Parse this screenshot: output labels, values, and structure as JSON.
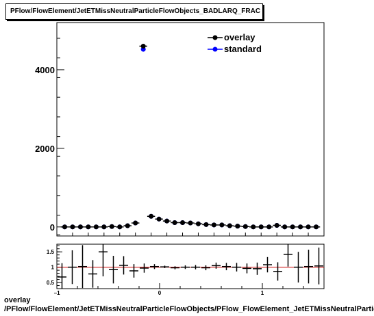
{
  "header": {
    "title": "PFlow/FlowElement/JetETMissNeutralParticleFlowObjects_BADLARQ_FRAC"
  },
  "footer": {
    "line1": "overlay",
    "line2": "/PFlow/FlowElement/JetETMissNeutralParticleFlowObjects/PFlow_FlowElement_JetETMissNeutralParticleFlowObjects_BADLARQ_FRAC"
  },
  "colors": {
    "overlay": "#000000",
    "standard": "#0000ff",
    "ratio_line": "#cc0000"
  },
  "chart_data": [
    {
      "type": "scatter",
      "title": "PFlow/FlowElement/JetETMissNeutralParticleFlowObjects_BADLARQ_FRAC",
      "xlim": [
        -0.1,
        1.6
      ],
      "ylim": [
        -230,
        5200
      ],
      "yticks": [
        0,
        2000,
        4000
      ],
      "ytick_labels": [
        "0",
        "2000",
        "4000"
      ],
      "grid": false,
      "legend_position": "top-right",
      "x": [
        -0.05,
        0.0,
        0.05,
        0.1,
        0.15,
        0.2,
        0.25,
        0.3,
        0.35,
        0.4,
        0.45,
        0.5,
        0.55,
        0.6,
        0.65,
        0.7,
        0.75,
        0.8,
        0.85,
        0.9,
        0.95,
        1.0,
        1.05,
        1.1,
        1.15,
        1.2,
        1.25,
        1.3,
        1.35,
        1.4,
        1.45,
        1.5,
        1.55
      ],
      "series": [
        {
          "name": "overlay",
          "values": [
            0,
            0,
            0,
            0,
            0,
            0,
            10,
            0,
            30,
            100,
            4600,
            270,
            200,
            150,
            110,
            110,
            100,
            80,
            60,
            50,
            50,
            30,
            20,
            10,
            0,
            0,
            0,
            40,
            0,
            0,
            0,
            0,
            0
          ]
        },
        {
          "name": "standard",
          "values": [
            0,
            0,
            0,
            0,
            0,
            0,
            10,
            0,
            30,
            100,
            4520,
            270,
            200,
            150,
            110,
            110,
            100,
            80,
            60,
            50,
            50,
            30,
            20,
            10,
            0,
            0,
            0,
            40,
            0,
            0,
            0,
            0,
            0
          ]
        }
      ]
    },
    {
      "type": "scatter",
      "xlim": [
        -1,
        1.6
      ],
      "ylim": [
        0.3,
        1.75
      ],
      "xticks": [
        -1,
        0,
        1
      ],
      "xtick_labels": [
        "−1",
        "0",
        "1"
      ],
      "yticks": [
        0.5,
        1,
        1.5
      ],
      "ytick_labels": [
        "0.5",
        "1",
        "1.5"
      ],
      "reference_line": 1,
      "x": [
        -0.95,
        -0.85,
        -0.75,
        -0.65,
        -0.55,
        -0.45,
        -0.35,
        -0.25,
        -0.15,
        -0.05,
        0.05,
        0.15,
        0.25,
        0.35,
        0.45,
        0.55,
        0.65,
        0.75,
        0.85,
        0.95,
        1.05,
        1.15,
        1.25,
        1.35,
        1.45,
        1.55
      ],
      "values": [
        0.68,
        1.0,
        1.02,
        0.78,
        1.5,
        0.92,
        1.06,
        0.88,
        0.97,
        1.02,
        1.01,
        0.98,
        1.0,
        1.0,
        0.98,
        1.05,
        1.02,
        1.0,
        0.96,
        0.95,
        1.08,
        0.86,
        1.42,
        1.0,
        1.02,
        1.04
      ],
      "errors": [
        0.45,
        0.55,
        0.7,
        0.45,
        0.8,
        0.45,
        0.3,
        0.22,
        0.15,
        0.08,
        0.04,
        0.05,
        0.06,
        0.07,
        0.08,
        0.1,
        0.12,
        0.14,
        0.16,
        0.2,
        0.25,
        0.3,
        0.4,
        0.5,
        0.55,
        0.6
      ]
    }
  ]
}
